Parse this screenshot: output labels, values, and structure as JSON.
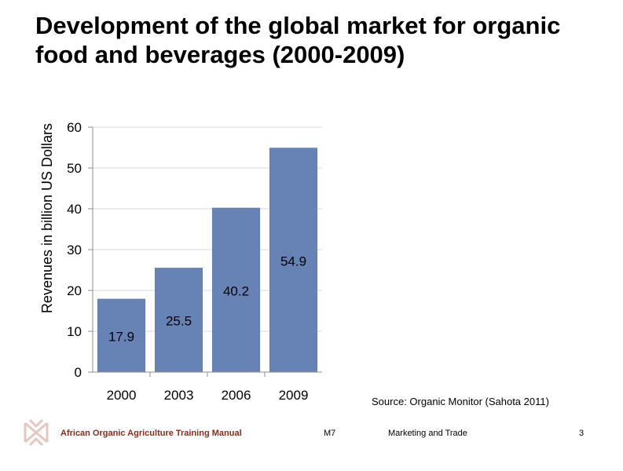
{
  "slide": {
    "title_line1": "Development of the global market for organic",
    "title_line2": "food and beverages (2000-2009)",
    "source": "Source: Organic Monitor (Sahota 2011)"
  },
  "footer": {
    "manual": "African Organic Agriculture Training Manual",
    "module": "M7",
    "topic": "Marketing and Trade",
    "page": "3",
    "brand_color": "#8b2a1a"
  },
  "chart_data": {
    "type": "bar",
    "categories": [
      "2000",
      "2003",
      "2006",
      "2009"
    ],
    "values": [
      17.9,
      25.5,
      40.2,
      54.9
    ],
    "data_labels": [
      "17.9",
      "25.5",
      "40.2",
      "54.9"
    ],
    "ylabel": "Revenues in billion US Dollars",
    "xlabel": "",
    "ylim": [
      0,
      60
    ],
    "yticks": [
      0,
      10,
      20,
      30,
      40,
      50,
      60
    ],
    "grid": true,
    "bar_color": "#6783b5",
    "grid_color": "#d9d9d9"
  }
}
